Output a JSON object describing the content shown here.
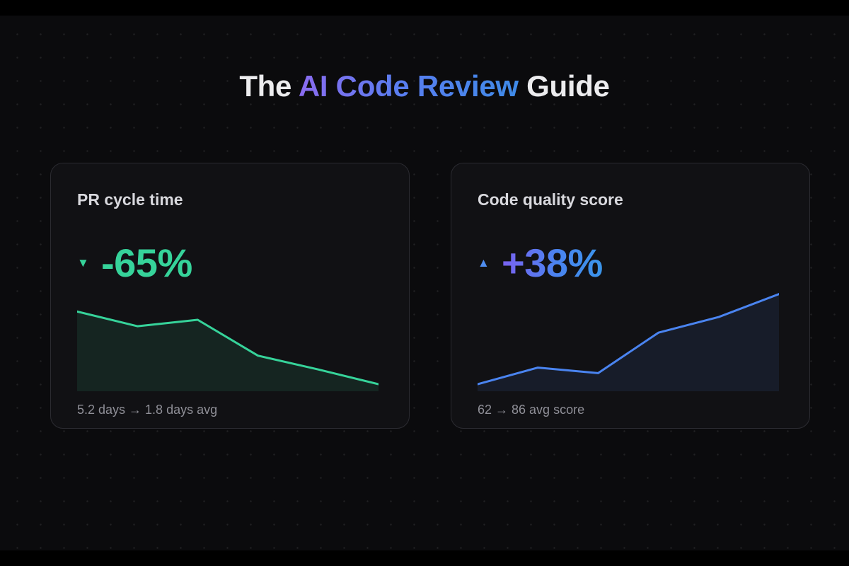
{
  "title": {
    "before": "The ",
    "accent": "AI Code Review",
    "after": " Guide"
  },
  "cards": [
    {
      "title": "PR cycle time",
      "arrow": "▼",
      "delta": "-65%",
      "caption": "5.2 days → 1.8 days avg",
      "color": "#36d39a"
    },
    {
      "title": "Code quality score",
      "arrow": "▲",
      "delta": "+38%",
      "caption": "62 → 86 avg score",
      "color": "#4a84f0"
    }
  ],
  "chart_data": [
    {
      "type": "area",
      "x": [
        0,
        1,
        2,
        3,
        4,
        5
      ],
      "values": [
        0.79,
        0.63,
        0.7,
        0.31,
        0.16,
        0.0
      ],
      "ylim": [
        0,
        1
      ],
      "color": "#36d39a"
    },
    {
      "type": "area",
      "x": [
        0,
        1,
        2,
        3,
        4,
        5
      ],
      "values": [
        0.0,
        0.18,
        0.12,
        0.56,
        0.73,
        0.98
      ],
      "ylim": [
        0,
        1
      ],
      "color": "#4a84f0"
    }
  ]
}
